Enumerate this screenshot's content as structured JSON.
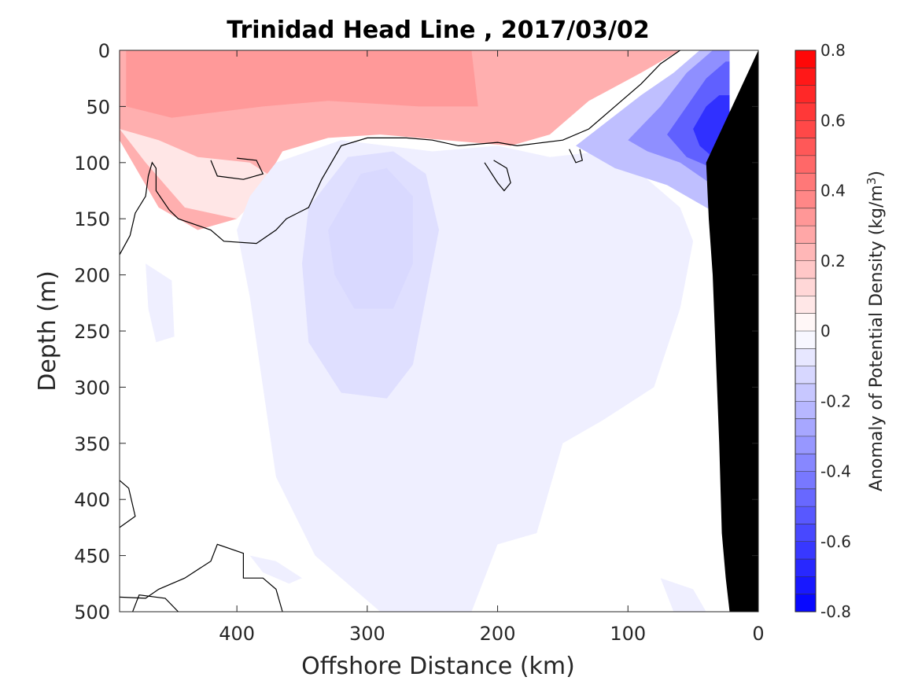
{
  "chart_data": {
    "type": "heatmap",
    "title": "Trinidad Head Line , 2017/03/02",
    "xlabel": "Offshore Distance (km)",
    "ylabel": "Depth (m)",
    "xlim": [
      490,
      0
    ],
    "ylim": [
      0,
      500
    ],
    "x_ticks": [
      400,
      300,
      200,
      100,
      0
    ],
    "y_ticks": [
      0,
      50,
      100,
      150,
      200,
      250,
      300,
      350,
      400,
      450,
      500
    ],
    "x_tick_labels": [
      "400",
      "300",
      "200",
      "100",
      "0"
    ],
    "y_tick_labels": [
      "0",
      "50",
      "100",
      "150",
      "200",
      "250",
      "300",
      "350",
      "400",
      "450",
      "500"
    ],
    "colorbar": {
      "label_prefix": "Anomaly of Potential Density (kg/m",
      "label_sup": "3",
      "label_suffix": ")",
      "range": [
        -0.8,
        0.8
      ],
      "step": 0.05,
      "ticks": [
        0.8,
        0.6,
        0.4,
        0.2,
        0,
        -0.2,
        -0.4,
        -0.6,
        -0.8
      ],
      "tick_labels": [
        "0.8",
        "0.6",
        "0.4",
        "0.2",
        "0",
        "-0.2",
        "-0.4",
        "-0.6",
        "-0.8"
      ],
      "colormap": "blue-white-red",
      "neg_color": "#0000ff",
      "pos_color": "#ff0000"
    },
    "regions": [
      {
        "name": "surface-positive-layer",
        "value": 0.25,
        "poly": [
          [
            490,
            0
          ],
          [
            60,
            0
          ],
          [
            90,
            20
          ],
          [
            130,
            45
          ],
          [
            160,
            75
          ],
          [
            190,
            85
          ],
          [
            240,
            80
          ],
          [
            290,
            75
          ],
          [
            330,
            78
          ],
          [
            365,
            90
          ],
          [
            385,
            130
          ],
          [
            400,
            150
          ],
          [
            430,
            160
          ],
          [
            460,
            140
          ],
          [
            480,
            100
          ],
          [
            490,
            80
          ]
        ]
      },
      {
        "name": "surface-positive-core",
        "value": 0.32,
        "poly": [
          [
            485,
            0
          ],
          [
            220,
            0
          ],
          [
            215,
            50
          ],
          [
            260,
            50
          ],
          [
            330,
            45
          ],
          [
            380,
            50
          ],
          [
            450,
            60
          ],
          [
            485,
            50
          ]
        ]
      },
      {
        "name": "surface-positive-slight",
        "value": 0.08,
        "poly": [
          [
            490,
            70
          ],
          [
            470,
            100
          ],
          [
            440,
            140
          ],
          [
            400,
            150
          ],
          [
            370,
            115
          ],
          [
            390,
            100
          ],
          [
            430,
            95
          ],
          [
            460,
            80
          ]
        ]
      },
      {
        "name": "subsurface-negative-broad",
        "value": -0.05,
        "poly": [
          [
            370,
            100
          ],
          [
            320,
            80
          ],
          [
            250,
            90
          ],
          [
            200,
            85
          ],
          [
            160,
            95
          ],
          [
            120,
            90
          ],
          [
            90,
            110
          ],
          [
            60,
            140
          ],
          [
            50,
            170
          ],
          [
            60,
            230
          ],
          [
            80,
            300
          ],
          [
            120,
            330
          ],
          [
            150,
            350
          ],
          [
            170,
            430
          ],
          [
            200,
            440
          ],
          [
            220,
            500
          ],
          [
            290,
            500
          ],
          [
            320,
            470
          ],
          [
            340,
            450
          ],
          [
            370,
            380
          ],
          [
            380,
            300
          ],
          [
            390,
            220
          ],
          [
            400,
            160
          ],
          [
            390,
            130
          ]
        ]
      },
      {
        "name": "subsurface-negative-core",
        "value": -0.1,
        "poly": [
          [
            345,
            140
          ],
          [
            315,
            95
          ],
          [
            280,
            90
          ],
          [
            255,
            110
          ],
          [
            245,
            160
          ],
          [
            255,
            220
          ],
          [
            265,
            280
          ],
          [
            285,
            310
          ],
          [
            320,
            305
          ],
          [
            345,
            260
          ],
          [
            350,
            190
          ]
        ]
      },
      {
        "name": "subsurface-negative-mid",
        "value": -0.12,
        "poly": [
          [
            330,
            160
          ],
          [
            305,
            110
          ],
          [
            285,
            105
          ],
          [
            265,
            130
          ],
          [
            265,
            190
          ],
          [
            280,
            230
          ],
          [
            310,
            230
          ],
          [
            325,
            200
          ]
        ]
      },
      {
        "name": "nearshore-negative-1",
        "value": -0.2,
        "poly": [
          [
            140,
            85
          ],
          [
            90,
            40
          ],
          [
            65,
            20
          ],
          [
            45,
            0
          ],
          [
            22,
            0
          ],
          [
            22,
            150
          ],
          [
            40,
            140
          ],
          [
            70,
            120
          ],
          [
            110,
            105
          ]
        ]
      },
      {
        "name": "nearshore-negative-2",
        "value": -0.35,
        "poly": [
          [
            100,
            80
          ],
          [
            75,
            50
          ],
          [
            55,
            20
          ],
          [
            35,
            0
          ],
          [
            22,
            0
          ],
          [
            22,
            130
          ],
          [
            35,
            120
          ],
          [
            60,
            100
          ],
          [
            85,
            90
          ]
        ]
      },
      {
        "name": "nearshore-negative-3",
        "value": -0.5,
        "poly": [
          [
            70,
            75
          ],
          [
            55,
            50
          ],
          [
            40,
            25
          ],
          [
            25,
            10
          ],
          [
            22,
            10
          ],
          [
            22,
            115
          ],
          [
            35,
            105
          ],
          [
            55,
            95
          ]
        ]
      },
      {
        "name": "nearshore-negative-4",
        "value": -0.65,
        "poly": [
          [
            50,
            70
          ],
          [
            40,
            50
          ],
          [
            30,
            40
          ],
          [
            22,
            40
          ],
          [
            22,
            100
          ],
          [
            35,
            95
          ],
          [
            45,
            85
          ]
        ]
      },
      {
        "name": "deep-negative-west",
        "value": -0.05,
        "poly": [
          [
            470,
            190
          ],
          [
            450,
            205
          ],
          [
            448,
            255
          ],
          [
            462,
            260
          ],
          [
            468,
            230
          ]
        ]
      },
      {
        "name": "deep-negative-east",
        "value": -0.05,
        "poly": [
          [
            160,
            260
          ],
          [
            135,
            250
          ],
          [
            115,
            280
          ],
          [
            120,
            310
          ],
          [
            145,
            300
          ],
          [
            160,
            290
          ]
        ]
      },
      {
        "name": "deep-negative-bottom",
        "value": -0.05,
        "poly": [
          [
            390,
            450
          ],
          [
            380,
            465
          ],
          [
            360,
            475
          ],
          [
            350,
            470
          ],
          [
            370,
            455
          ]
        ]
      },
      {
        "name": "deep-negative-shelf-bottom",
        "value": -0.05,
        "poly": [
          [
            75,
            470
          ],
          [
            65,
            500
          ],
          [
            40,
            500
          ],
          [
            50,
            480
          ]
        ]
      }
    ],
    "zero_contours": [
      [
        [
          490,
          182
        ],
        [
          482,
          165
        ],
        [
          478,
          145
        ],
        [
          470,
          130
        ],
        [
          468,
          112
        ],
        [
          465,
          100
        ],
        [
          462,
          105
        ],
        [
          462,
          125
        ],
        [
          452,
          142
        ],
        [
          445,
          150
        ],
        [
          420,
          160
        ],
        [
          410,
          170
        ],
        [
          385,
          172
        ],
        [
          370,
          160
        ],
        [
          362,
          150
        ],
        [
          345,
          140
        ],
        [
          335,
          115
        ],
        [
          320,
          85
        ],
        [
          300,
          78
        ],
        [
          270,
          78
        ],
        [
          250,
          80
        ],
        [
          230,
          85
        ],
        [
          200,
          82
        ],
        [
          185,
          85
        ],
        [
          150,
          80
        ],
        [
          130,
          70
        ],
        [
          110,
          50
        ],
        [
          90,
          30
        ],
        [
          75,
          12
        ],
        [
          60,
          0
        ]
      ],
      [
        [
          420,
          98
        ],
        [
          415,
          112
        ],
        [
          395,
          115
        ],
        [
          380,
          110
        ],
        [
          385,
          98
        ],
        [
          400,
          96
        ]
      ],
      [
        [
          210,
          100
        ],
        [
          200,
          118
        ],
        [
          195,
          125
        ],
        [
          190,
          118
        ],
        [
          193,
          105
        ],
        [
          203,
          98
        ]
      ],
      [
        [
          145,
          88
        ],
        [
          140,
          100
        ],
        [
          135,
          98
        ],
        [
          137,
          88
        ]
      ],
      [
        [
          490,
          383
        ],
        [
          483,
          390
        ],
        [
          478,
          415
        ],
        [
          490,
          425
        ]
      ],
      [
        [
          490,
          487
        ],
        [
          470,
          488
        ],
        [
          460,
          480
        ],
        [
          440,
          470
        ],
        [
          420,
          455
        ],
        [
          415,
          440
        ],
        [
          395,
          448
        ],
        [
          395,
          470
        ],
        [
          380,
          470
        ],
        [
          370,
          480
        ],
        [
          365,
          500
        ]
      ],
      [
        [
          480,
          500
        ],
        [
          475,
          485
        ],
        [
          455,
          488
        ],
        [
          445,
          500
        ]
      ],
      [
        [
          25,
          178
        ],
        [
          22,
          185
        ]
      ],
      [
        [
          30,
          252
        ],
        [
          28,
          280
        ],
        [
          25,
          340
        ],
        [
          25,
          400
        ],
        [
          22,
          465
        ]
      ]
    ],
    "land_mask": [
      [
        22,
        500
      ],
      [
        25,
        470
      ],
      [
        28,
        430
      ],
      [
        30,
        350
      ],
      [
        35,
        200
      ],
      [
        38,
        150
      ],
      [
        40,
        100
      ],
      [
        0,
        0
      ],
      [
        0,
        500
      ]
    ]
  }
}
